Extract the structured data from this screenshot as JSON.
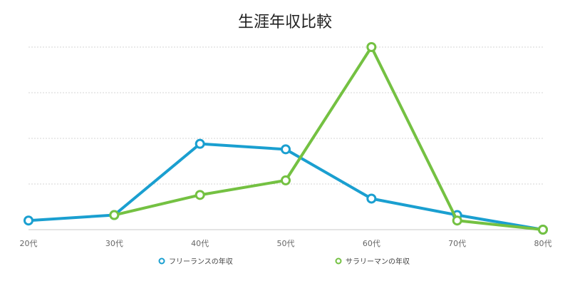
{
  "chart_data": {
    "type": "line",
    "title": "生涯年収比較",
    "xlabel": "",
    "ylabel": "",
    "categories": [
      "20代",
      "30代",
      "40代",
      "50代",
      "60代",
      "70代",
      "80代"
    ],
    "ylim": [
      0,
      100
    ],
    "grid": true,
    "legend_position": "bottom",
    "series": [
      {
        "name": "フリーランスの年収",
        "color": "#1a9fd0",
        "values": [
          5,
          8,
          47,
          44,
          17,
          8,
          0
        ]
      },
      {
        "name": "サラリーマンの年収",
        "color": "#74c142",
        "values": [
          null,
          8,
          19,
          27,
          100,
          5,
          0
        ]
      }
    ]
  }
}
